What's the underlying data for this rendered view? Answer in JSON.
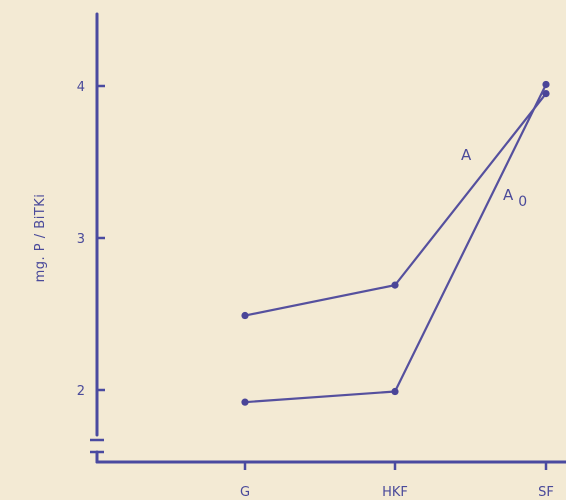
{
  "chart_data": {
    "type": "line",
    "categories": [
      "G",
      "HKF",
      "SF"
    ],
    "ylabel": "mg. P / BiTKi",
    "xlabel": "",
    "title": "",
    "ylim": [
      1.5,
      4.5
    ],
    "yticks": [
      2,
      3,
      4
    ],
    "ytick_labels": [
      "2",
      "3",
      "4"
    ],
    "series": [
      {
        "name": "A",
        "values": [
          2.49,
          2.69,
          3.95
        ]
      },
      {
        "name": "A0",
        "label_main": "A",
        "label_sub": "0",
        "values": [
          1.92,
          1.99,
          4.01
        ]
      }
    ],
    "axis_break": true,
    "grid": false,
    "colors": {
      "axis": "#4a4aa0",
      "line": "#55509e",
      "background": "#f3ead4"
    }
  }
}
